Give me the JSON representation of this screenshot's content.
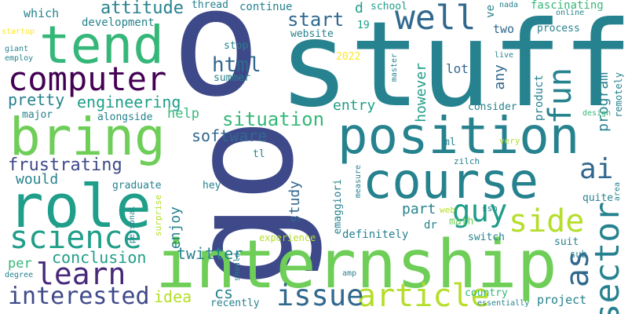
{
  "palette": {
    "dark_purple": "#440154",
    "indigo": "#472a7a",
    "slate_blue": "#3e4989",
    "steel_blue": "#31688e",
    "teal_blue": "#26828e",
    "teal": "#1f9e89",
    "green_teal": "#35b779",
    "green": "#6ece58",
    "yellow_green": "#b5de2b",
    "yellow": "#fde725"
  },
  "words": [
    {
      "id": "o",
      "text": "o",
      "color": "#3e4989"
    },
    {
      "id": "stuff",
      "text": "stuff",
      "color": "#26828e"
    },
    {
      "id": "go",
      "text": "go",
      "color": "#3e4989"
    },
    {
      "id": "internship",
      "text": "internship",
      "color": "#6ece58"
    },
    {
      "id": "tend",
      "text": "tend",
      "color": "#35b779"
    },
    {
      "id": "bring",
      "text": "bring",
      "color": "#6ece58"
    },
    {
      "id": "role",
      "text": "role",
      "color": "#1f9e89"
    },
    {
      "id": "position",
      "text": "position",
      "color": "#26828e"
    },
    {
      "id": "course",
      "text": "course",
      "color": "#26828e"
    },
    {
      "id": "computer",
      "text": "computer",
      "color": "#440154"
    },
    {
      "id": "science",
      "text": "science",
      "color": "#1f9e89"
    },
    {
      "id": "well",
      "text": "well",
      "color": "#31688e"
    },
    {
      "id": "fun",
      "text": "fun",
      "color": "#26828e"
    },
    {
      "id": "sector",
      "text": "sector",
      "color": "#26828e"
    },
    {
      "id": "article",
      "text": "article",
      "color": "#b5de2b"
    },
    {
      "id": "issue",
      "text": "issue",
      "color": "#31688e"
    },
    {
      "id": "learn",
      "text": "learn",
      "color": "#472a7a"
    },
    {
      "id": "interested",
      "text": "interested",
      "color": "#3e4989"
    },
    {
      "id": "guy",
      "text": "guy",
      "color": "#1f9e89"
    },
    {
      "id": "side",
      "text": "side",
      "color": "#b5de2b"
    },
    {
      "id": "ai",
      "text": "ai",
      "color": "#31688e"
    },
    {
      "id": "as",
      "text": "as",
      "color": "#31688e"
    },
    {
      "id": "attitude",
      "text": "attitude",
      "color": "#26828e"
    },
    {
      "id": "html",
      "text": "html",
      "color": "#31688e"
    },
    {
      "id": "start",
      "text": "start",
      "color": "#31688e"
    },
    {
      "id": "engineering",
      "text": "engineering",
      "color": "#1f9e89"
    },
    {
      "id": "pretty",
      "text": "pretty",
      "color": "#26828e"
    },
    {
      "id": "situation",
      "text": "situation",
      "color": "#35b779"
    },
    {
      "id": "software",
      "text": "software",
      "color": "#31688e"
    },
    {
      "id": "frustrating",
      "text": "frustrating",
      "color": "#3e4989"
    },
    {
      "id": "conclusion",
      "text": "conclusion",
      "color": "#1f9e89"
    },
    {
      "id": "twitter",
      "text": "twitter",
      "color": "#26828e"
    },
    {
      "id": "idea",
      "text": "idea",
      "color": "#b5de2b"
    },
    {
      "id": "cs",
      "text": "cs",
      "color": "#26828e"
    },
    {
      "id": "entry",
      "text": "entry",
      "color": "#1f9e89"
    },
    {
      "id": "however",
      "text": "however",
      "color": "#1f9e89"
    },
    {
      "id": "any",
      "text": "any",
      "color": "#31688e"
    },
    {
      "id": "program",
      "text": "program",
      "color": "#26828e"
    },
    {
      "id": "study",
      "text": "study",
      "color": "#31688e"
    },
    {
      "id": "part",
      "text": "part",
      "color": "#26828e"
    },
    {
      "id": "enjoy",
      "text": "enjoy",
      "color": "#26828e"
    },
    {
      "id": "would",
      "text": "would",
      "color": "#26828e"
    },
    {
      "id": "help",
      "text": "help",
      "color": "#35b779"
    },
    {
      "id": "per",
      "text": "per",
      "color": "#35b779"
    },
    {
      "id": "which",
      "text": "which",
      "color": "#26828e"
    },
    {
      "id": "development",
      "text": "development",
      "color": "#26828e"
    },
    {
      "id": "two",
      "text": "two",
      "color": "#31688e"
    },
    {
      "id": "lot",
      "text": "lot",
      "color": "#31688e"
    },
    {
      "id": "product",
      "text": "product",
      "color": "#26828e"
    },
    {
      "id": "project",
      "text": "project",
      "color": "#26828e"
    },
    {
      "id": "definitely",
      "text": "definitely",
      "color": "#26828e"
    },
    {
      "id": "major",
      "text": "major",
      "color": "#26828e"
    },
    {
      "id": "alongside",
      "text": "alongside",
      "color": "#26828e"
    },
    {
      "id": "graduate",
      "text": "graduate",
      "color": "#26828e"
    },
    {
      "id": "hey",
      "text": "hey",
      "color": "#26828e"
    },
    {
      "id": "tl",
      "text": "tl",
      "color": "#26828e"
    },
    {
      "id": "stop",
      "text": "stop",
      "color": "#26828e"
    },
    {
      "id": "website",
      "text": "website",
      "color": "#26828e"
    },
    {
      "id": "summer",
      "text": "summer",
      "color": "#26828e"
    },
    {
      "id": "thread",
      "text": "thread",
      "color": "#26828e"
    },
    {
      "id": "continue",
      "text": "continue",
      "color": "#26828e"
    },
    {
      "id": "school",
      "text": "school",
      "color": "#1f9e89"
    },
    {
      "id": "d",
      "text": "d",
      "color": "#1f9e89"
    },
    {
      "id": "n19",
      "text": "19",
      "color": "#1f9e89"
    },
    {
      "id": "y2022",
      "text": "2022",
      "color": "#fde725"
    },
    {
      "id": "ve",
      "text": "ve",
      "color": "#26828e"
    },
    {
      "id": "fascinating",
      "text": "fascinating",
      "color": "#35b779"
    },
    {
      "id": "nada",
      "text": "nada",
      "color": "#26828e"
    },
    {
      "id": "online",
      "text": "online",
      "color": "#26828e"
    },
    {
      "id": "process",
      "text": "process",
      "color": "#26828e"
    },
    {
      "id": "consider",
      "text": "consider",
      "color": "#26828e"
    },
    {
      "id": "remotely",
      "text": "remotely",
      "color": "#26828e"
    },
    {
      "id": "design",
      "text": "design",
      "color": "#35b779"
    },
    {
      "id": "area",
      "text": "area",
      "color": "#26828e"
    },
    {
      "id": "very",
      "text": "very",
      "color": "#b5de2b"
    },
    {
      "id": "ml",
      "text": "ml",
      "color": "#26828e"
    },
    {
      "id": "zilch",
      "text": "zilch",
      "color": "#26828e"
    },
    {
      "id": "quite",
      "text": "quite",
      "color": "#26828e"
    },
    {
      "id": "suit",
      "text": "suit",
      "color": "#26828e"
    },
    {
      "id": "sub",
      "text": "sub",
      "color": "#26828e"
    },
    {
      "id": "essentially",
      "text": "essentially",
      "color": "#26828e"
    },
    {
      "id": "country",
      "text": "country",
      "color": "#35b779"
    },
    {
      "id": "switch",
      "text": "switch",
      "color": "#26828e"
    },
    {
      "id": "math",
      "text": "math",
      "color": "#6ece58"
    },
    {
      "id": "ssn",
      "text": "ssn",
      "color": "#26828e"
    },
    {
      "id": "dr",
      "text": "dr",
      "color": "#26828e"
    },
    {
      "id": "web",
      "text": "web",
      "color": "#b5de2b"
    },
    {
      "id": "emaggiori",
      "text": "emaggiori",
      "color": "#26828e"
    },
    {
      "id": "measure",
      "text": "measure",
      "color": "#26828e"
    },
    {
      "id": "surprise",
      "text": "surprise",
      "color": "#b5de2b"
    },
    {
      "id": "personal",
      "text": "personal",
      "color": "#26828e"
    },
    {
      "id": "experience",
      "text": "experience",
      "color": "#b5de2b"
    },
    {
      "id": "recently",
      "text": "recently",
      "color": "#26828e"
    },
    {
      "id": "should",
      "text": "should",
      "color": "#26828e"
    },
    {
      "id": "amp",
      "text": "amp",
      "color": "#26828e"
    },
    {
      "id": "degree",
      "text": "degree",
      "color": "#26828e"
    },
    {
      "id": "startup",
      "text": "startup",
      "color": "#fde725"
    },
    {
      "id": "employ",
      "text": "employ",
      "color": "#26828e"
    },
    {
      "id": "giant",
      "text": "giant",
      "color": "#26828e"
    },
    {
      "id": "live",
      "text": "live",
      "color": "#26828e"
    },
    {
      "id": "master",
      "text": "master",
      "color": "#26828e"
    }
  ]
}
